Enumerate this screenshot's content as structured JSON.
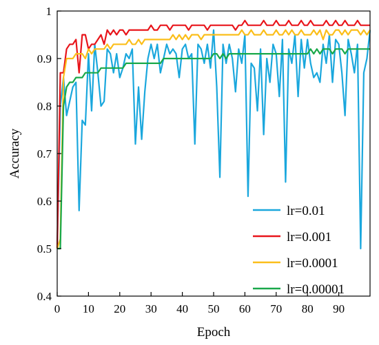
{
  "chart_data": {
    "type": "line",
    "title": "",
    "xlabel": "Epoch",
    "ylabel": "Accuracy",
    "xlim": [
      0,
      100
    ],
    "ylim": [
      0.4,
      1.0
    ],
    "x_ticks": [
      0,
      10,
      20,
      30,
      40,
      50,
      60,
      70,
      80,
      90
    ],
    "x_tick_labels": [
      "0",
      "10",
      "20",
      "30",
      "40",
      "50",
      "60",
      "70",
      "80",
      "90"
    ],
    "y_ticks": [
      0.4,
      0.5,
      0.6,
      0.7,
      0.8,
      0.9,
      1.0
    ],
    "y_tick_labels": [
      "0.4",
      "0.5",
      "0.6",
      "0.7",
      "0.8",
      "0.9",
      "1"
    ],
    "grid": false,
    "legend_position": "bottom-right",
    "series": [
      {
        "name": "lr=0.01",
        "color": "#1aa7dd",
        "x": [
          0,
          1,
          2,
          3,
          4,
          5,
          6,
          7,
          8,
          9,
          10,
          11,
          12,
          13,
          14,
          15,
          16,
          17,
          18,
          19,
          20,
          21,
          22,
          23,
          24,
          25,
          26,
          27,
          28,
          29,
          30,
          31,
          32,
          33,
          34,
          35,
          36,
          37,
          38,
          39,
          40,
          41,
          42,
          43,
          44,
          45,
          46,
          47,
          48,
          49,
          50,
          51,
          52,
          53,
          54,
          55,
          56,
          57,
          58,
          59,
          60,
          61,
          62,
          63,
          64,
          65,
          66,
          67,
          68,
          69,
          70,
          71,
          72,
          73,
          74,
          75,
          76,
          77,
          78,
          79,
          80,
          81,
          82,
          83,
          84,
          85,
          86,
          87,
          88,
          89,
          90,
          91,
          92,
          93,
          94,
          95,
          96,
          97,
          98,
          99,
          100
        ],
        "values": [
          0.5,
          0.8,
          0.86,
          0.78,
          0.81,
          0.84,
          0.85,
          0.58,
          0.77,
          0.76,
          0.91,
          0.79,
          0.93,
          0.87,
          0.8,
          0.81,
          0.92,
          0.91,
          0.87,
          0.91,
          0.86,
          0.88,
          0.91,
          0.9,
          0.92,
          0.72,
          0.84,
          0.73,
          0.83,
          0.9,
          0.93,
          0.9,
          0.93,
          0.87,
          0.9,
          0.93,
          0.91,
          0.92,
          0.91,
          0.86,
          0.92,
          0.93,
          0.9,
          0.91,
          0.72,
          0.93,
          0.92,
          0.89,
          0.93,
          0.88,
          0.96,
          0.84,
          0.65,
          0.93,
          0.89,
          0.93,
          0.9,
          0.83,
          0.92,
          0.89,
          0.95,
          0.61,
          0.89,
          0.88,
          0.79,
          0.92,
          0.74,
          0.9,
          0.85,
          0.93,
          0.91,
          0.82,
          0.94,
          0.64,
          0.92,
          0.89,
          0.95,
          0.82,
          0.94,
          0.88,
          0.94,
          0.89,
          0.86,
          0.87,
          0.85,
          0.93,
          0.89,
          0.95,
          0.85,
          0.94,
          0.93,
          0.87,
          0.78,
          0.94,
          0.91,
          0.87,
          0.93,
          0.5,
          0.87,
          0.9,
          0.96
        ]
      },
      {
        "name": "lr=0.001",
        "color": "#e8141a",
        "x": [
          0,
          1,
          2,
          3,
          4,
          5,
          6,
          7,
          8,
          9,
          10,
          11,
          12,
          13,
          14,
          15,
          16,
          17,
          18,
          19,
          20,
          21,
          22,
          23,
          24,
          25,
          26,
          27,
          28,
          29,
          30,
          31,
          32,
          33,
          34,
          35,
          36,
          37,
          38,
          39,
          40,
          41,
          42,
          43,
          44,
          45,
          46,
          47,
          48,
          49,
          50,
          51,
          52,
          53,
          54,
          55,
          56,
          57,
          58,
          59,
          60,
          61,
          62,
          63,
          64,
          65,
          66,
          67,
          68,
          69,
          70,
          71,
          72,
          73,
          74,
          75,
          76,
          77,
          78,
          79,
          80,
          81,
          82,
          83,
          84,
          85,
          86,
          87,
          88,
          89,
          90,
          91,
          92,
          93,
          94,
          95,
          96,
          97,
          98,
          99,
          100
        ],
        "values": [
          0.5,
          0.87,
          0.87,
          0.92,
          0.93,
          0.93,
          0.94,
          0.87,
          0.95,
          0.95,
          0.92,
          0.93,
          0.93,
          0.94,
          0.95,
          0.93,
          0.96,
          0.95,
          0.96,
          0.95,
          0.96,
          0.96,
          0.95,
          0.96,
          0.96,
          0.96,
          0.96,
          0.96,
          0.96,
          0.96,
          0.97,
          0.96,
          0.96,
          0.97,
          0.97,
          0.97,
          0.96,
          0.97,
          0.97,
          0.97,
          0.97,
          0.97,
          0.96,
          0.97,
          0.97,
          0.97,
          0.97,
          0.97,
          0.96,
          0.97,
          0.97,
          0.97,
          0.97,
          0.97,
          0.97,
          0.97,
          0.97,
          0.96,
          0.97,
          0.97,
          0.98,
          0.97,
          0.97,
          0.97,
          0.97,
          0.97,
          0.98,
          0.97,
          0.97,
          0.97,
          0.98,
          0.97,
          0.97,
          0.97,
          0.98,
          0.97,
          0.97,
          0.97,
          0.98,
          0.97,
          0.97,
          0.98,
          0.97,
          0.97,
          0.97,
          0.97,
          0.98,
          0.97,
          0.97,
          0.98,
          0.97,
          0.97,
          0.98,
          0.97,
          0.97,
          0.97,
          0.98,
          0.97,
          0.97,
          0.97,
          0.97
        ]
      },
      {
        "name": "lr=0.0001",
        "color": "#fbbe1a",
        "x": [
          0,
          1,
          2,
          3,
          4,
          5,
          6,
          7,
          8,
          9,
          10,
          11,
          12,
          13,
          14,
          15,
          16,
          17,
          18,
          19,
          20,
          21,
          22,
          23,
          24,
          25,
          26,
          27,
          28,
          29,
          30,
          31,
          32,
          33,
          34,
          35,
          36,
          37,
          38,
          39,
          40,
          41,
          42,
          43,
          44,
          45,
          46,
          47,
          48,
          49,
          50,
          51,
          52,
          53,
          54,
          55,
          56,
          57,
          58,
          59,
          60,
          61,
          62,
          63,
          64,
          65,
          66,
          67,
          68,
          69,
          70,
          71,
          72,
          73,
          74,
          75,
          76,
          77,
          78,
          79,
          80,
          81,
          82,
          83,
          84,
          85,
          86,
          87,
          88,
          89,
          90,
          91,
          92,
          93,
          94,
          95,
          96,
          97,
          98,
          99,
          100
        ],
        "values": [
          0.5,
          0.52,
          0.86,
          0.9,
          0.9,
          0.9,
          0.91,
          0.91,
          0.91,
          0.9,
          0.92,
          0.91,
          0.92,
          0.92,
          0.92,
          0.92,
          0.93,
          0.92,
          0.93,
          0.93,
          0.93,
          0.93,
          0.93,
          0.94,
          0.93,
          0.93,
          0.94,
          0.93,
          0.94,
          0.94,
          0.94,
          0.94,
          0.94,
          0.94,
          0.94,
          0.94,
          0.94,
          0.95,
          0.94,
          0.95,
          0.94,
          0.95,
          0.94,
          0.95,
          0.95,
          0.95,
          0.94,
          0.95,
          0.95,
          0.95,
          0.95,
          0.95,
          0.95,
          0.95,
          0.95,
          0.95,
          0.95,
          0.95,
          0.95,
          0.96,
          0.95,
          0.95,
          0.96,
          0.95,
          0.95,
          0.95,
          0.96,
          0.95,
          0.95,
          0.95,
          0.96,
          0.95,
          0.95,
          0.96,
          0.95,
          0.96,
          0.95,
          0.95,
          0.96,
          0.95,
          0.95,
          0.95,
          0.96,
          0.95,
          0.96,
          0.94,
          0.96,
          0.95,
          0.95,
          0.96,
          0.96,
          0.95,
          0.96,
          0.95,
          0.96,
          0.96,
          0.96,
          0.95,
          0.96,
          0.95,
          0.96
        ]
      },
      {
        "name": "lr=0.00001",
        "color": "#19a84a",
        "x": [
          0,
          1,
          2,
          3,
          4,
          5,
          6,
          7,
          8,
          9,
          10,
          11,
          12,
          13,
          14,
          15,
          16,
          17,
          18,
          19,
          20,
          21,
          22,
          23,
          24,
          25,
          26,
          27,
          28,
          29,
          30,
          31,
          32,
          33,
          34,
          35,
          36,
          37,
          38,
          39,
          40,
          41,
          42,
          43,
          44,
          45,
          46,
          47,
          48,
          49,
          50,
          51,
          52,
          53,
          54,
          55,
          56,
          57,
          58,
          59,
          60,
          61,
          62,
          63,
          64,
          65,
          66,
          67,
          68,
          69,
          70,
          71,
          72,
          73,
          74,
          75,
          76,
          77,
          78,
          79,
          80,
          81,
          82,
          83,
          84,
          85,
          86,
          87,
          88,
          89,
          90,
          91,
          92,
          93,
          94,
          95,
          96,
          97,
          98,
          99,
          100
        ],
        "values": [
          0.5,
          0.5,
          0.8,
          0.84,
          0.85,
          0.85,
          0.86,
          0.86,
          0.86,
          0.87,
          0.87,
          0.87,
          0.87,
          0.87,
          0.88,
          0.88,
          0.88,
          0.88,
          0.88,
          0.88,
          0.88,
          0.88,
          0.89,
          0.89,
          0.89,
          0.89,
          0.89,
          0.89,
          0.89,
          0.89,
          0.89,
          0.89,
          0.89,
          0.89,
          0.9,
          0.9,
          0.9,
          0.9,
          0.9,
          0.9,
          0.9,
          0.9,
          0.9,
          0.9,
          0.9,
          0.9,
          0.9,
          0.9,
          0.9,
          0.9,
          0.91,
          0.91,
          0.9,
          0.91,
          0.9,
          0.91,
          0.91,
          0.91,
          0.91,
          0.91,
          0.91,
          0.91,
          0.91,
          0.91,
          0.91,
          0.91,
          0.91,
          0.91,
          0.91,
          0.91,
          0.91,
          0.91,
          0.91,
          0.91,
          0.91,
          0.91,
          0.91,
          0.91,
          0.91,
          0.91,
          0.91,
          0.92,
          0.91,
          0.92,
          0.91,
          0.92,
          0.92,
          0.92,
          0.91,
          0.92,
          0.92,
          0.92,
          0.91,
          0.92,
          0.92,
          0.92,
          0.92,
          0.92,
          0.92,
          0.92,
          0.92
        ]
      }
    ]
  }
}
